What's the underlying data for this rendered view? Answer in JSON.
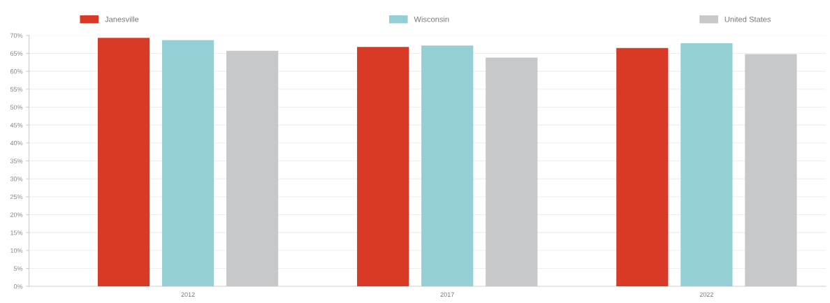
{
  "chart_data": {
    "type": "bar",
    "categories": [
      "2012",
      "2017",
      "2022"
    ],
    "series": [
      {
        "name": "Janesville",
        "color": "#d93a25",
        "values": [
          69.3,
          66.8,
          66.5
        ]
      },
      {
        "name": "Wisconsin",
        "color": "#94cfd6",
        "values": [
          68.7,
          67.2,
          67.8
        ]
      },
      {
        "name": "United States",
        "color": "#c6c8ca",
        "values": [
          65.7,
          63.8,
          64.8
        ]
      }
    ],
    "ylim": [
      0,
      70
    ],
    "yticks": [
      {
        "value": 0,
        "label": "0%"
      },
      {
        "value": 5,
        "label": "5%"
      },
      {
        "value": 10,
        "label": "10%"
      },
      {
        "value": 15,
        "label": "15%"
      },
      {
        "value": 20,
        "label": "20%"
      },
      {
        "value": 25,
        "label": "25%"
      },
      {
        "value": 30,
        "label": "30%"
      },
      {
        "value": 35,
        "label": "35%"
      },
      {
        "value": 40,
        "label": "40%"
      },
      {
        "value": 45,
        "label": "45%"
      },
      {
        "value": 50,
        "label": "50%"
      },
      {
        "value": 55,
        "label": "55%"
      },
      {
        "value": 60,
        "label": "60%"
      },
      {
        "value": 65,
        "label": "65%"
      },
      {
        "value": 70,
        "label": "70%"
      }
    ],
    "grid": "y",
    "legend": "top"
  }
}
